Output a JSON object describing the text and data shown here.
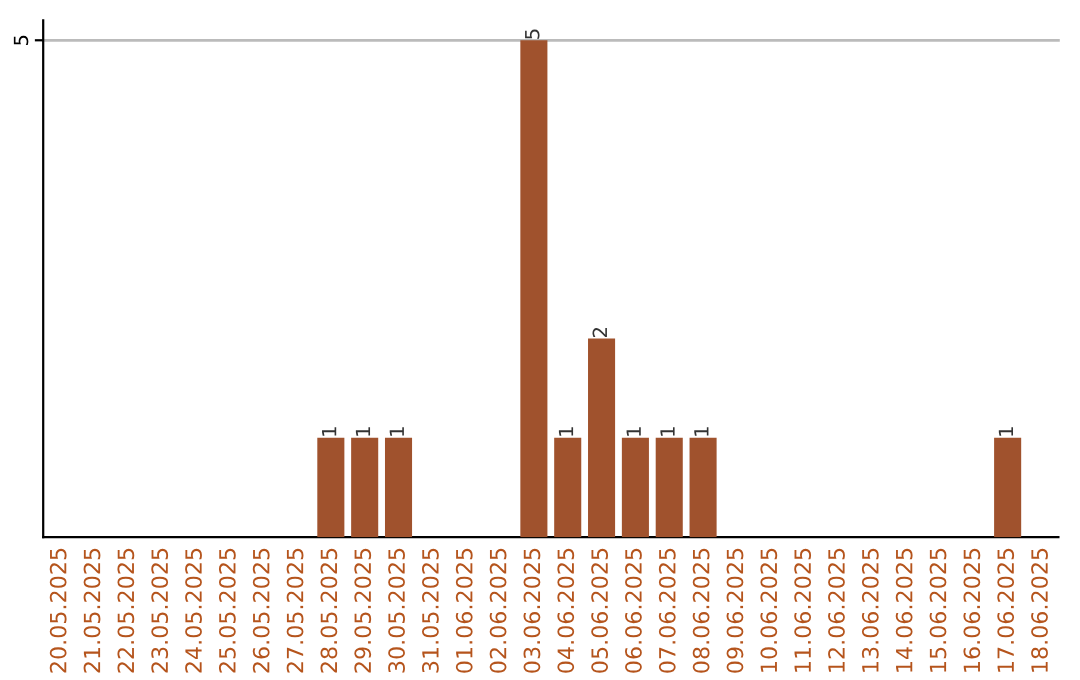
{
  "chart_data": {
    "type": "bar",
    "categories": [
      "20.05.2025",
      "21.05.2025",
      "22.05.2025",
      "23.05.2025",
      "24.05.2025",
      "25.05.2025",
      "26.05.2025",
      "27.05.2025",
      "28.05.2025",
      "29.05.2025",
      "30.05.2025",
      "31.05.2025",
      "01.06.2025",
      "02.06.2025",
      "03.06.2025",
      "04.06.2025",
      "05.06.2025",
      "06.06.2025",
      "07.06.2025",
      "08.06.2025",
      "09.06.2025",
      "10.06.2025",
      "11.06.2025",
      "12.06.2025",
      "13.06.2025",
      "14.06.2025",
      "15.06.2025",
      "16.06.2025",
      "17.06.2025",
      "18.06.2025"
    ],
    "values": [
      0,
      0,
      0,
      0,
      0,
      0,
      0,
      0,
      1,
      1,
      1,
      0,
      0,
      0,
      5,
      1,
      2,
      1,
      1,
      1,
      0,
      0,
      0,
      0,
      0,
      0,
      0,
      0,
      1,
      0
    ],
    "color": "#a0522d",
    "value_labels": [
      null,
      null,
      null,
      null,
      null,
      null,
      null,
      null,
      "1",
      "1",
      "1",
      null,
      null,
      null,
      "5",
      "1",
      "2",
      "1",
      "1",
      "1",
      null,
      null,
      null,
      null,
      null,
      null,
      null,
      null,
      "1",
      null
    ],
    "ylim": [
      0,
      5.2
    ],
    "yticks": [
      5
    ],
    "grid": "y"
  }
}
